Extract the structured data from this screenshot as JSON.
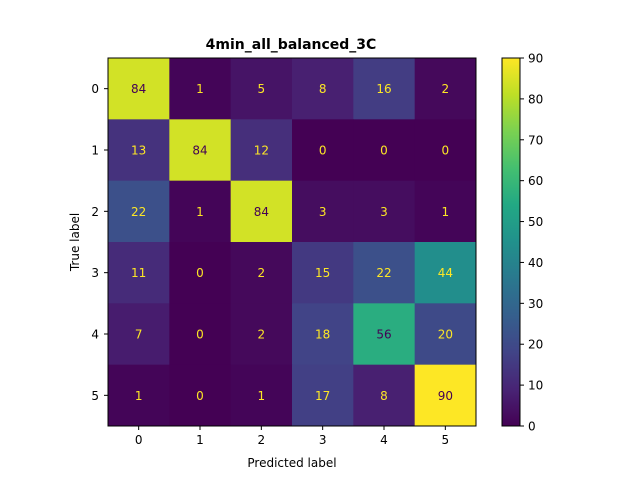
{
  "chart_data": {
    "type": "heatmap",
    "title": "4min_all_balanced_3C",
    "xlabel": "Predicted label",
    "ylabel": "True label",
    "x_categories": [
      "0",
      "1",
      "2",
      "3",
      "4",
      "5"
    ],
    "y_categories": [
      "0",
      "1",
      "2",
      "3",
      "4",
      "5"
    ],
    "values": [
      [
        84,
        1,
        5,
        8,
        16,
        2
      ],
      [
        13,
        84,
        12,
        0,
        0,
        0
      ],
      [
        22,
        1,
        84,
        3,
        3,
        1
      ],
      [
        11,
        0,
        2,
        15,
        22,
        44
      ],
      [
        7,
        0,
        2,
        18,
        56,
        20
      ],
      [
        1,
        0,
        1,
        17,
        8,
        90
      ]
    ],
    "colorscale": "viridis",
    "vmin": 0,
    "vmax": 90,
    "colorbar_ticks": [
      0,
      10,
      20,
      30,
      40,
      50,
      60,
      70,
      80,
      90
    ],
    "grid": false,
    "text_colors": {
      "on_dark": "#fde725",
      "on_light": "#440154"
    }
  }
}
